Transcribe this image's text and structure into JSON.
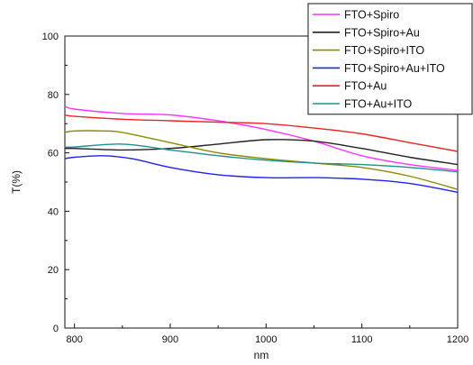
{
  "chart_data": {
    "type": "line",
    "title": "",
    "xlabel": "nm",
    "ylabel": "T(%)",
    "xlim": [
      790,
      1200
    ],
    "ylim": [
      0,
      100
    ],
    "x_ticks": [
      "800",
      "900",
      "1000",
      "1100",
      "1200"
    ],
    "y_ticks": [
      "0",
      "20",
      "40",
      "60",
      "80",
      "100"
    ],
    "grid": false,
    "legend_position": "top-right",
    "series": [
      {
        "name": "FTO+Spiro",
        "color": "#ff33ff",
        "points": [
          [
            790,
            76
          ],
          [
            800,
            75
          ],
          [
            850,
            73.5
          ],
          [
            900,
            73
          ],
          [
            950,
            71
          ],
          [
            1000,
            68
          ],
          [
            1050,
            64
          ],
          [
            1100,
            59
          ],
          [
            1150,
            56
          ],
          [
            1200,
            54
          ]
        ]
      },
      {
        "name": "FTO+Spiro+Au",
        "color": "#222222",
        "points": [
          [
            790,
            61.5
          ],
          [
            800,
            61.5
          ],
          [
            850,
            61
          ],
          [
            900,
            61.5
          ],
          [
            950,
            63
          ],
          [
            1000,
            64.5
          ],
          [
            1050,
            64
          ],
          [
            1100,
            61.5
          ],
          [
            1150,
            58.5
          ],
          [
            1200,
            56
          ]
        ]
      },
      {
        "name": "FTO+Spiro+ITO",
        "color": "#8b8b00",
        "points": [
          [
            790,
            67
          ],
          [
            800,
            67.5
          ],
          [
            830,
            67.5
          ],
          [
            850,
            67
          ],
          [
            900,
            63.5
          ],
          [
            950,
            60
          ],
          [
            1000,
            58
          ],
          [
            1050,
            56.5
          ],
          [
            1100,
            55
          ],
          [
            1150,
            52
          ],
          [
            1200,
            47.5
          ]
        ]
      },
      {
        "name": "FTO+Spiro+Au+ITO",
        "color": "#2222ee",
        "points": [
          [
            790,
            58
          ],
          [
            800,
            58.5
          ],
          [
            830,
            59
          ],
          [
            860,
            58
          ],
          [
            900,
            55
          ],
          [
            950,
            52.5
          ],
          [
            1000,
            51.5
          ],
          [
            1050,
            51.5
          ],
          [
            1100,
            51
          ],
          [
            1150,
            49.5
          ],
          [
            1200,
            46.5
          ]
        ]
      },
      {
        "name": "FTO+Au",
        "color": "#ee2222",
        "points": [
          [
            790,
            73
          ],
          [
            800,
            72.5
          ],
          [
            850,
            71.5
          ],
          [
            900,
            71
          ],
          [
            950,
            70.5
          ],
          [
            1000,
            70
          ],
          [
            1050,
            68.5
          ],
          [
            1100,
            66.5
          ],
          [
            1150,
            63.5
          ],
          [
            1200,
            60.5
          ]
        ]
      },
      {
        "name": "FTO+Au+ITO",
        "color": "#1f8f8f",
        "points": [
          [
            790,
            62
          ],
          [
            800,
            62
          ],
          [
            850,
            63
          ],
          [
            900,
            61
          ],
          [
            950,
            59
          ],
          [
            1000,
            57.5
          ],
          [
            1050,
            56.5
          ],
          [
            1100,
            56
          ],
          [
            1150,
            55
          ],
          [
            1200,
            53.5
          ]
        ]
      }
    ]
  }
}
